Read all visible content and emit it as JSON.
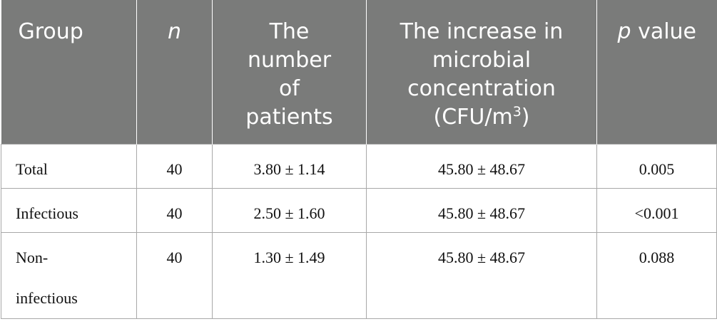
{
  "table": {
    "headers": {
      "group": "Group",
      "n": "n",
      "patients_lines": [
        "The",
        "number",
        "of",
        "patients"
      ],
      "increase_lines": [
        "The increase in",
        "microbial",
        "concentration",
        "(CFU/m",
        "3",
        ")"
      ],
      "p_italic": "p",
      "p_rest": " value"
    },
    "rows": [
      {
        "group": "Total",
        "n": "40",
        "patients": "3.80 ± 1.14",
        "increase": "45.80 ± 48.67",
        "p": "0.005"
      },
      {
        "group": "Infectious",
        "n": "40",
        "patients": "2.50 ± 1.60",
        "increase": "45.80 ± 48.67",
        "p": "<0.001"
      },
      {
        "group_line1": "Non-",
        "group_line2": "infectious",
        "n": "40",
        "patients": "1.30 ± 1.49",
        "increase": "45.80 ± 48.67",
        "p": "0.088"
      }
    ]
  }
}
